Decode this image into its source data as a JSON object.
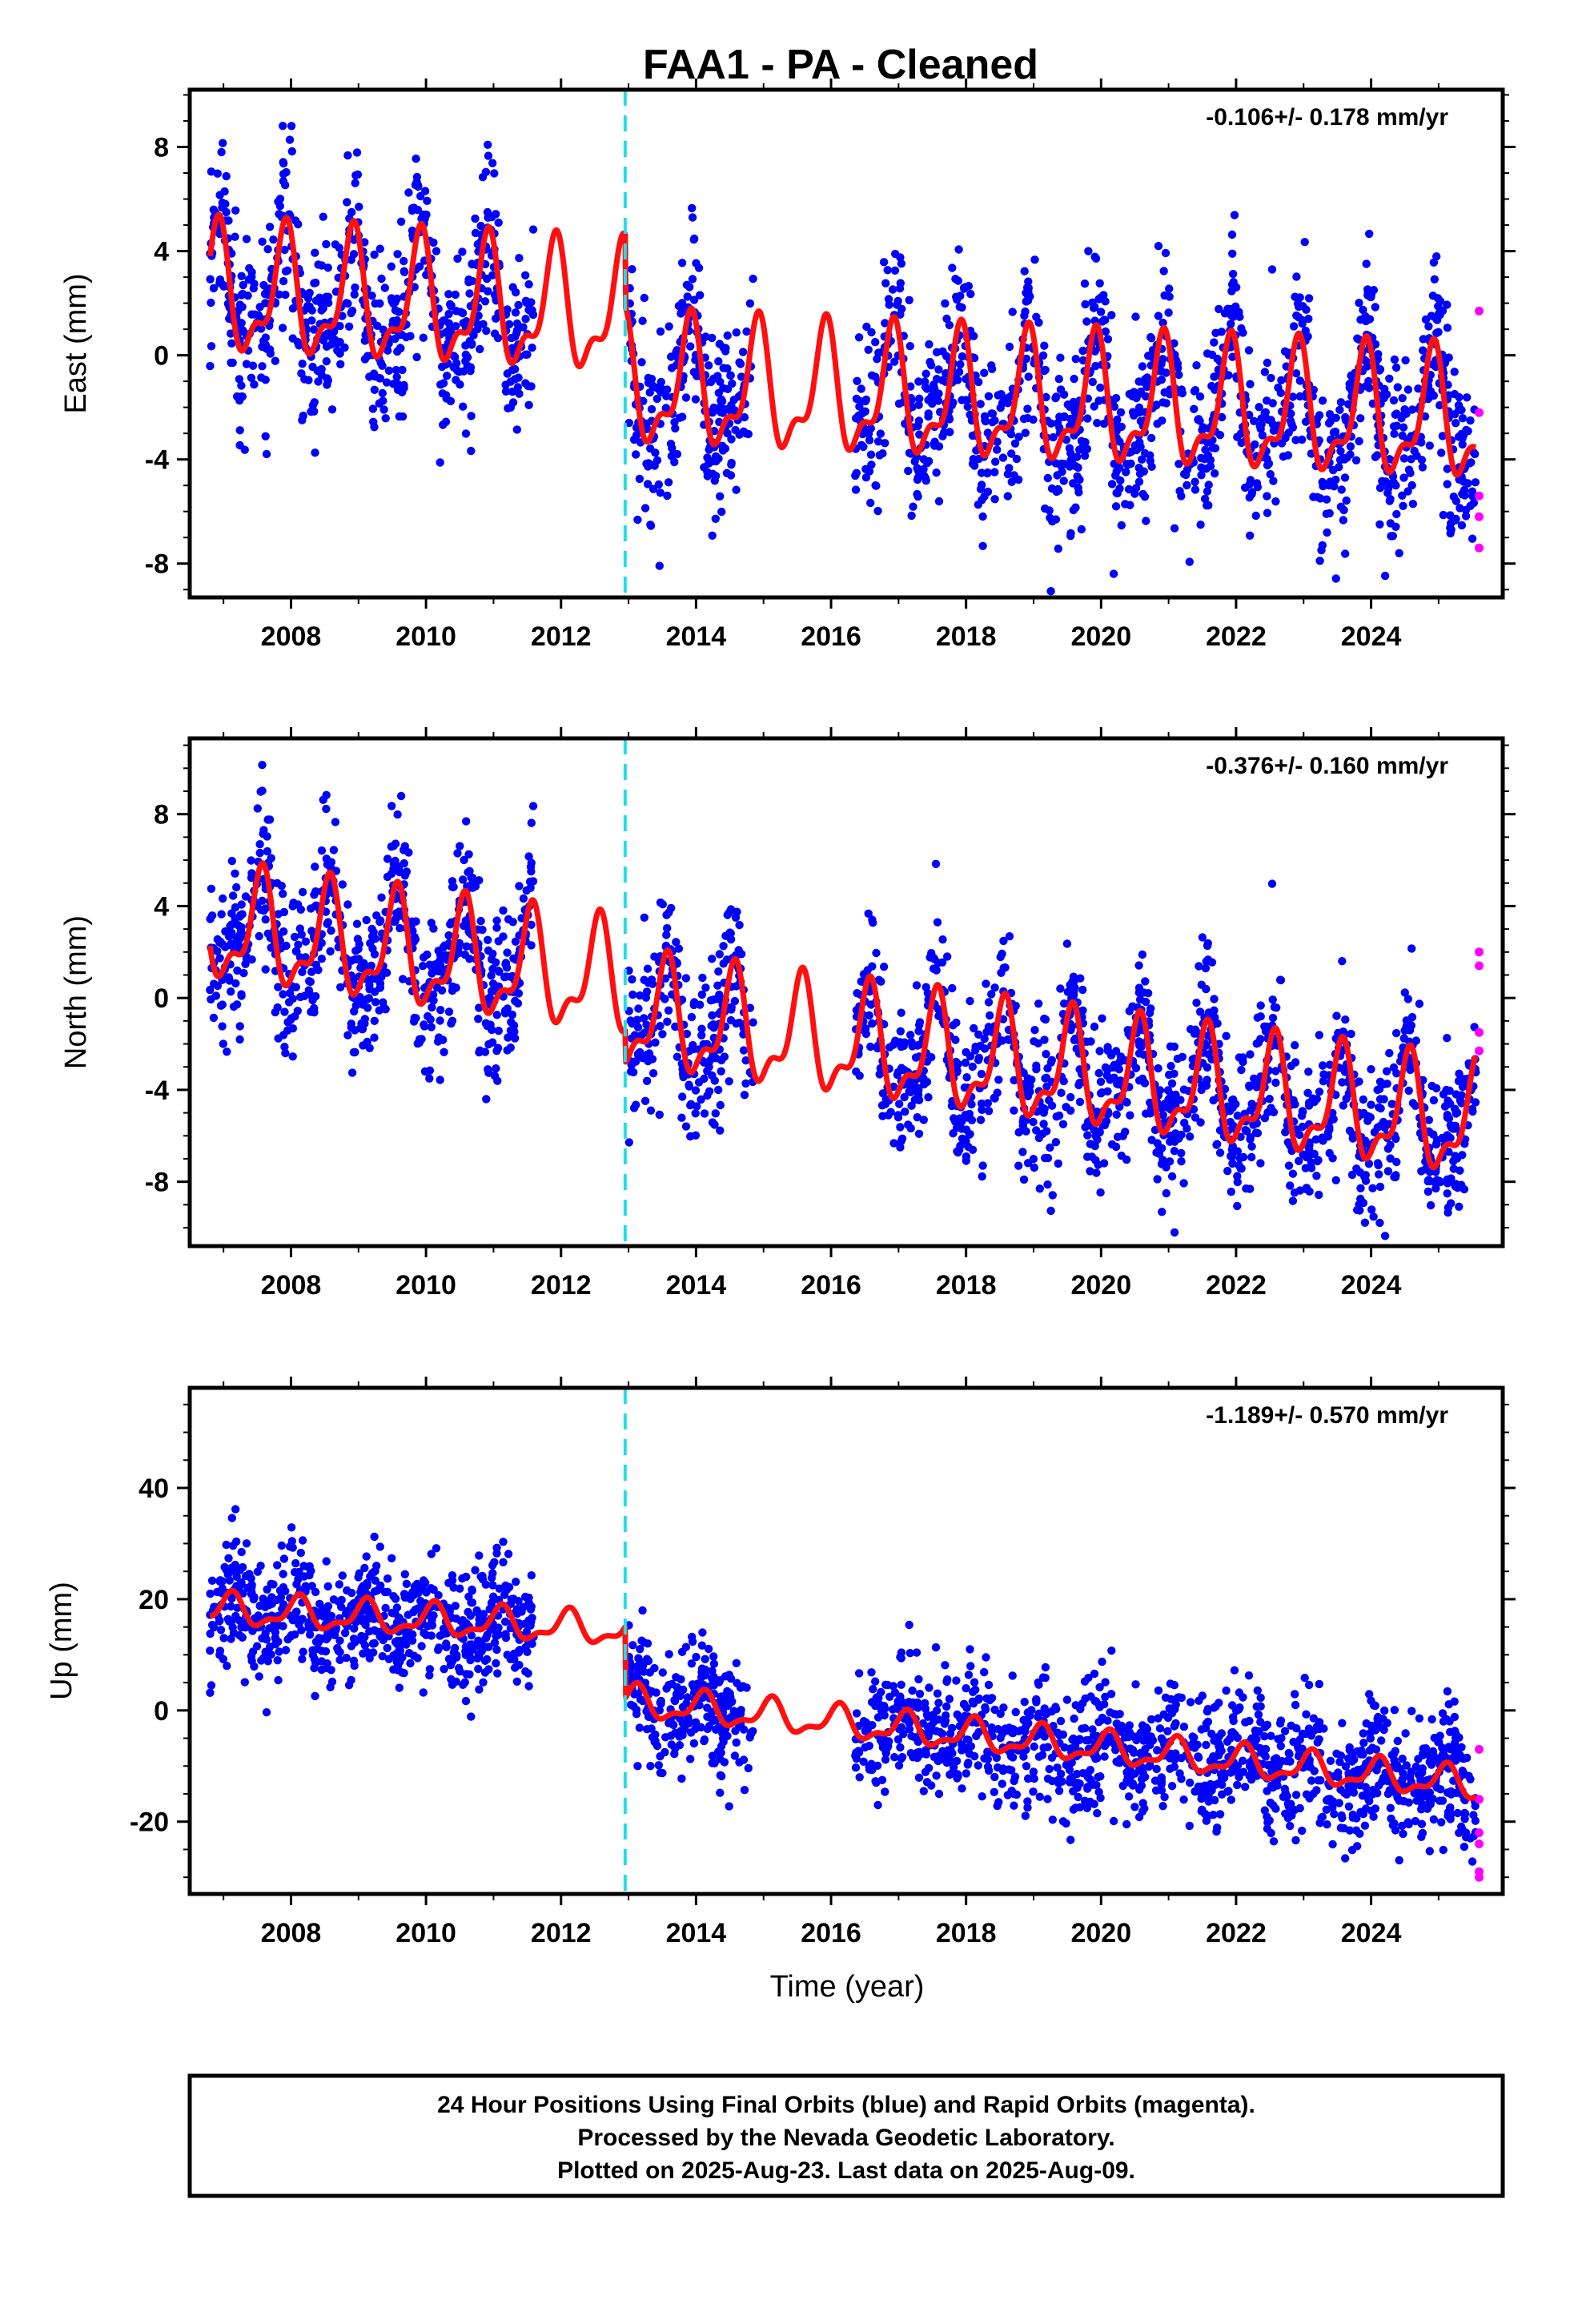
{
  "title": "FAA1  - PA - Cleaned",
  "footer": {
    "line1": "24 Hour Positions Using Final Orbits (blue) and Rapid Orbits (magenta).",
    "line2": "Processed by the Nevada Geodetic Laboratory.",
    "line3": "Plotted on 2025-Aug-23. Last data on 2025-Aug-09."
  },
  "colors": {
    "final_orbits": "#0000ff",
    "rapid_orbits": "#ff00ff",
    "model": "#ff1010",
    "break_line": "#22dde8"
  },
  "chart_data": [
    {
      "type": "scatter",
      "component": "east",
      "ylabel": "East (mm)",
      "xlabel": "",
      "rate": "-0.106+/- 0.178 mm/yr",
      "xlim": [
        2006.5,
        2025.95
      ],
      "ylim": [
        -9.3,
        10.2
      ],
      "xticks": [
        "2008",
        "2010",
        "2012",
        "2014",
        "2016",
        "2018",
        "2020",
        "2022",
        "2024"
      ],
      "yticks": [
        "8",
        "4",
        "0",
        "-4",
        "-8"
      ],
      "break_year": 2012.95,
      "data_gap": [
        2011.6,
        2013.0,
        2014.85,
        2016.35
      ],
      "series": [
        {
          "name": "Final Orbits",
          "color": "#0000ff",
          "x_range": [
            2006.8,
            2025.55
          ],
          "approx_points": 5600
        },
        {
          "name": "Rapid Orbits",
          "color": "#ff00ff",
          "points": [
            [
              2025.6,
              1.7
            ],
            [
              2025.6,
              -2.2
            ],
            [
              2025.6,
              -5.4
            ],
            [
              2025.6,
              -6.2
            ],
            [
              2025.6,
              -7.4
            ]
          ]
        }
      ],
      "model": {
        "offset_before": 2.3,
        "offset_after": -1.2,
        "trend_before": -0.12,
        "trend_after": -0.106,
        "annual_amplitude": 2.4,
        "annual_peak": 0.9
      }
    },
    {
      "type": "scatter",
      "component": "north",
      "ylabel": "North (mm)",
      "xlabel": "",
      "rate": "-0.376+/- 0.160 mm/yr",
      "xlim": [
        2006.5,
        2025.95
      ],
      "ylim": [
        -10.8,
        11.3
      ],
      "xticks": [
        "2008",
        "2010",
        "2012",
        "2014",
        "2016",
        "2018",
        "2020",
        "2022",
        "2024"
      ],
      "yticks": [
        "8",
        "4",
        "0",
        "-4",
        "-8"
      ],
      "break_year": 2012.95,
      "data_gap": [
        2011.6,
        2013.0,
        2014.85,
        2016.35
      ],
      "series": [
        {
          "name": "Final Orbits",
          "color": "#0000ff",
          "x_range": [
            2006.8,
            2025.55
          ],
          "approx_points": 5600
        },
        {
          "name": "Rapid Orbits",
          "color": "#ff00ff",
          "points": [
            [
              2025.6,
              2.0
            ],
            [
              2025.6,
              1.4
            ],
            [
              2025.6,
              -1.5
            ],
            [
              2025.6,
              -2.3
            ]
          ]
        }
      ],
      "model": {
        "offset_before": 3.0,
        "offset_after": -0.8,
        "trend_before": -0.4,
        "trend_after": -0.376,
        "annual_amplitude": 2.4,
        "annual_peak": 0.55
      }
    },
    {
      "type": "scatter",
      "component": "up",
      "ylabel": "Up (mm)",
      "xlabel": "Time (year)",
      "rate": "-1.189+/- 0.570 mm/yr",
      "xlim": [
        2006.5,
        2025.95
      ],
      "ylim": [
        -33,
        58
      ],
      "xticks": [
        "2008",
        "2010",
        "2012",
        "2014",
        "2016",
        "2018",
        "2020",
        "2022",
        "2024"
      ],
      "yticks": [
        "40",
        "20",
        "0",
        "-20"
      ],
      "break_year": 2012.95,
      "data_gap": [
        2011.6,
        2013.0,
        2014.85,
        2016.35
      ],
      "series": [
        {
          "name": "Final Orbits",
          "color": "#0000ff",
          "x_range": [
            2006.8,
            2025.55
          ],
          "approx_points": 5600
        },
        {
          "name": "Rapid Orbits",
          "color": "#ff00ff",
          "points": [
            [
              2025.6,
              -7
            ],
            [
              2025.6,
              -16
            ],
            [
              2025.6,
              -22
            ],
            [
              2025.6,
              -24
            ],
            [
              2025.6,
              -29
            ],
            [
              2025.6,
              -30
            ]
          ]
        }
      ],
      "model": {
        "offset_before": 18.0,
        "offset_after": 1.5,
        "trend_before": -0.6,
        "trend_after": -1.189,
        "annual_amplitude": 2.8,
        "annual_peak": 0.1
      }
    }
  ]
}
